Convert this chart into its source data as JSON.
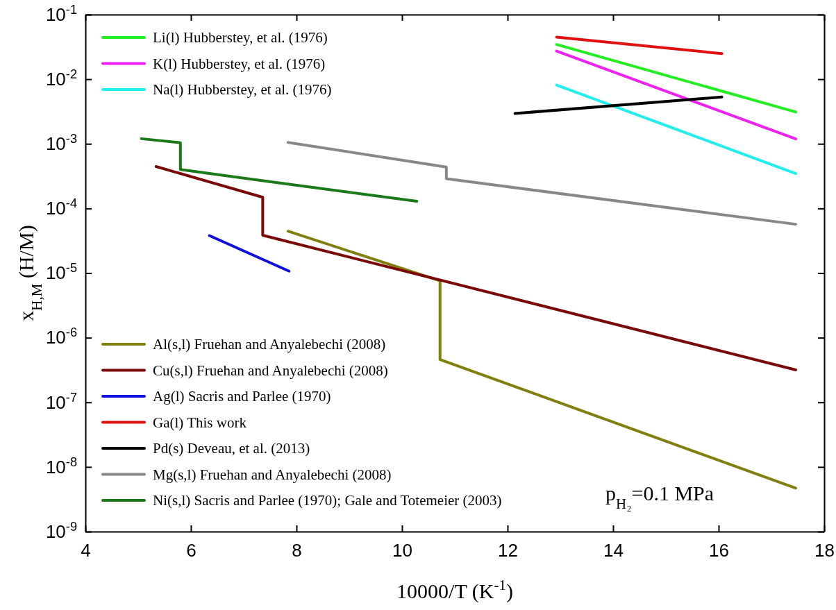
{
  "chart_data": {
    "type": "line",
    "xlabel": "10000/T (K$^{-1}$)",
    "ylabel": "x$_{H,M}$ (H/M)",
    "log": "y",
    "legend": "left",
    "line_style": "solid",
    "marker": "none",
    "grid": false,
    "xlim": [
      4,
      18
    ],
    "xticks": [
      4,
      6,
      8,
      10,
      12,
      14,
      16,
      18
    ],
    "ylim": [
      1e-09,
      0.1
    ],
    "yticks": [
      {
        "value": 1e-09,
        "label": "10$^{-9}$"
      },
      {
        "value": 1e-08,
        "label": "10$^{-8}$"
      },
      {
        "value": 1e-07,
        "label": "10$^{-7}$"
      },
      {
        "value": 1e-06,
        "label": "10$^{-6}$"
      },
      {
        "value": 1e-05,
        "label": "10$^{-5}$"
      },
      {
        "value": 0.0001,
        "label": "10$^{-4}$"
      },
      {
        "value": 0.001,
        "label": "10$^{-3}$"
      },
      {
        "value": 0.01,
        "label": "10$^{-2}$"
      },
      {
        "value": 0.1,
        "label": "10$^{-1}$"
      }
    ],
    "annotations": [
      "p$_{H₂}$=0.1 MPa"
    ],
    "series": [
      {
        "name": "Li(l) Hubberstey, et al. (1976)",
        "color": "#22ee22",
        "x": [
          12.93,
          17.46
        ],
        "values": [
          0.0344,
          0.00311
        ]
      },
      {
        "name": "K(l) Hubberstey, et al. (1976)",
        "color": "#ee22ee",
        "x": [
          12.93,
          17.46
        ],
        "values": [
          0.0272,
          0.00119
        ]
      },
      {
        "name": "Na(l) Hubberstey, et al. (1976)",
        "color": "#22eeee",
        "x": [
          12.93,
          17.46
        ],
        "values": [
          0.0081,
          0.000347
        ]
      },
      {
        "name": "Al(s,l) Fruehan and Anyalebechi (2008)",
        "color": "#808010",
        "x": [
          7.84,
          10.72,
          10.72,
          17.46
        ],
        "values": [
          4.44e-05,
          7.6e-06,
          4.6e-07,
          4.7e-09
        ]
      },
      {
        "name": "Cu(s,l) Fruehan and Anyalebechi (2008)",
        "color": "#7a0a0a",
        "x": [
          5.34,
          7.36,
          7.36,
          17.46
        ],
        "values": [
          0.000445,
          0.000149,
          3.85e-05,
          3.18e-07
        ]
      },
      {
        "name": "Ag(l) Sacris and Parlee (1970)",
        "color": "#1010dd",
        "x": [
          6.35,
          7.86
        ],
        "values": [
          3.8e-05,
          1.07e-05
        ]
      },
      {
        "name": "Ga(l) This work",
        "color": "#e01010",
        "x": [
          12.93,
          16.06
        ],
        "values": [
          0.0447,
          0.0249
        ]
      },
      {
        "name": "Pd(s) Deveau, et al. (2013)",
        "color": "#000000",
        "x": [
          12.14,
          16.06
        ],
        "values": [
          0.00295,
          0.0053
        ]
      },
      {
        "name": "Mg(s,l) Fruehan and Anyalebechi (2008)",
        "color": "#888888",
        "x": [
          7.84,
          10.84,
          10.84,
          17.46
        ],
        "values": [
          0.00105,
          0.000437,
          0.000288,
          5.7e-05
        ]
      },
      {
        "name": "Ni(s,l) Sacris and Parlee (1970); Gale and Totemeier (2003)",
        "color": "#1a7a1a",
        "x": [
          5.06,
          5.8,
          5.8,
          7.64,
          10.28
        ],
        "values": [
          0.0012,
          0.00104,
          0.0004,
          0.00025,
          0.000129
        ]
      }
    ]
  }
}
